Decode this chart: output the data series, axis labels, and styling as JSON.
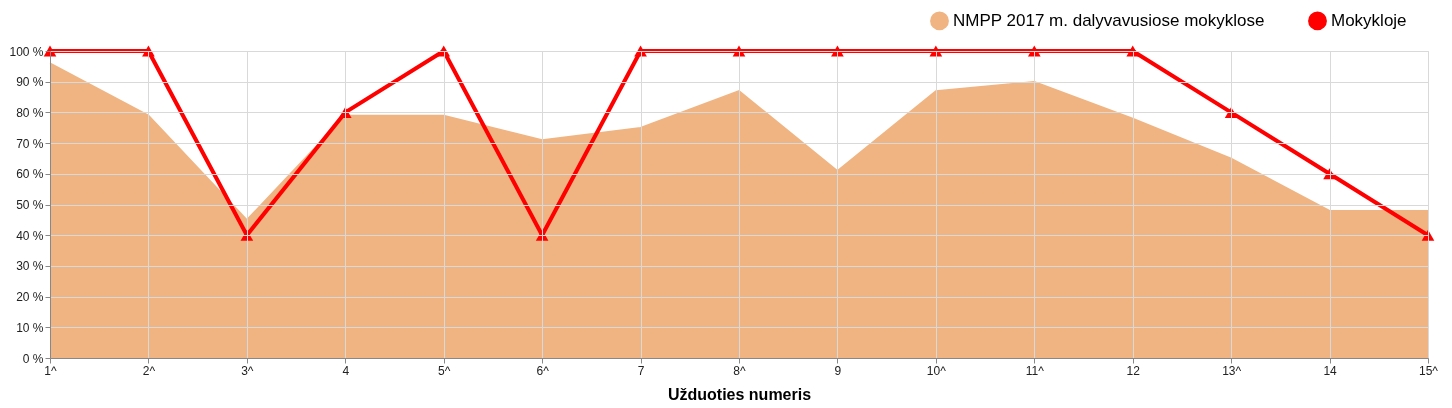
{
  "chart_data": {
    "type": "area",
    "xlabel": "Užduoties numeris",
    "categories": [
      "1^",
      "2^",
      "3^",
      "4",
      "5^",
      "6^",
      "7",
      "8^",
      "9",
      "10^",
      "11^",
      "12",
      "13^",
      "14",
      "15^"
    ],
    "series": [
      {
        "name": "NMPP 2017 m. dalyvavusiose mokyklose",
        "color": "#f0b482",
        "values": [
          96,
          79,
          45,
          79,
          79,
          71,
          75,
          87,
          61,
          87,
          90,
          78,
          65,
          48,
          48
        ]
      },
      {
        "name": "Mokykloje",
        "type": "line",
        "color": "#ff0000",
        "marker": "triangle",
        "values": [
          100,
          100,
          40,
          80,
          100,
          40,
          100,
          100,
          100,
          100,
          100,
          100,
          80,
          60,
          40
        ]
      }
    ],
    "ylim": [
      0,
      100
    ],
    "yticks": [
      {
        "value": 0,
        "label": "0 %"
      },
      {
        "value": 10,
        "label": "10 %"
      },
      {
        "value": 20,
        "label": "20 %"
      },
      {
        "value": 30,
        "label": "30 %"
      },
      {
        "value": 40,
        "label": "40 %"
      },
      {
        "value": 50,
        "label": "50 %"
      },
      {
        "value": 60,
        "label": "60 %"
      },
      {
        "value": 70,
        "label": "70 %"
      },
      {
        "value": 80,
        "label": "80 %"
      },
      {
        "value": 90,
        "label": "90 %"
      },
      {
        "value": 100,
        "label": "100 %"
      }
    ],
    "grid": true,
    "legend": "top right"
  }
}
